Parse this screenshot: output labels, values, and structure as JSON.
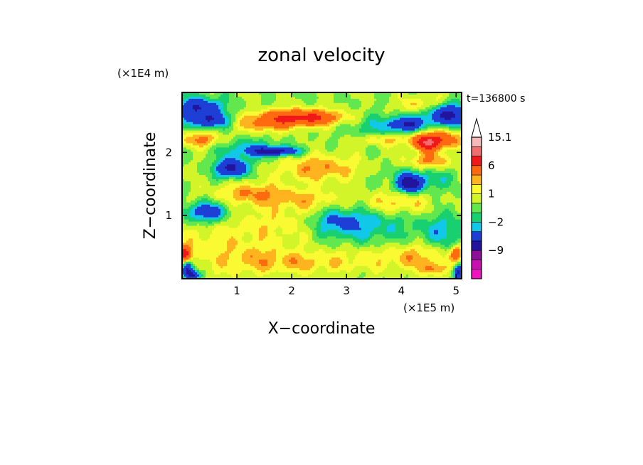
{
  "chart_data": {
    "type": "heatmap",
    "title": "zonal velocity",
    "xlabel": "X−coordinate",
    "ylabel": "Z−coordinate",
    "x_scale_label": "(×1E5 m)",
    "y_scale_label": "(×1E4 m)",
    "time_label": "t=136800 s",
    "xlim": [
      0,
      5.1
    ],
    "ylim": [
      0,
      2.95
    ],
    "x_ticks": [
      1,
      2,
      3,
      4,
      5
    ],
    "y_ticks": [
      1,
      2
    ],
    "colorbar": {
      "labels": [
        {
          "value": 15.1,
          "text": "15.1"
        },
        {
          "value": 6,
          "text": "6"
        },
        {
          "value": 1,
          "text": "1"
        },
        {
          "value": -2,
          "text": "−2"
        },
        {
          "value": -9,
          "text": "−9"
        }
      ],
      "levels": [
        -15,
        -12,
        -9,
        -6,
        -3,
        -2,
        -1,
        0,
        1,
        2,
        3,
        6,
        9,
        12,
        15.1
      ],
      "colors": [
        "#f014c0",
        "#c80fb0",
        "#8c0f9a",
        "#23149e",
        "#1d3fd6",
        "#12c8e8",
        "#18d070",
        "#62e84e",
        "#d2f52a",
        "#fafa32",
        "#ffb31f",
        "#ff6a10",
        "#f01818",
        "#f06e6e",
        "#f6b9b9"
      ],
      "extend_max": true
    },
    "features": [
      {
        "x": 2.2,
        "z": 2.55,
        "sx": 0.5,
        "sz": 0.09,
        "v": 7
      },
      {
        "x": 1.5,
        "z": 2.45,
        "sx": 0.35,
        "sz": 0.1,
        "v": 3
      },
      {
        "x": 0.35,
        "z": 2.2,
        "sx": 0.25,
        "sz": 0.08,
        "v": 3.5
      },
      {
        "x": 0.3,
        "z": 2.7,
        "sx": 0.3,
        "sz": 0.12,
        "v": -6
      },
      {
        "x": 0.5,
        "z": 2.5,
        "sx": 0.25,
        "sz": 0.08,
        "v": -5
      },
      {
        "x": 1.7,
        "z": 2.02,
        "sx": 0.3,
        "sz": 0.05,
        "v": -7
      },
      {
        "x": 1.2,
        "z": 2.05,
        "sx": 0.35,
        "sz": 0.12,
        "v": -2.5
      },
      {
        "x": 0.9,
        "z": 1.75,
        "sx": 0.2,
        "sz": 0.1,
        "v": -7
      },
      {
        "x": 3.5,
        "z": 2.4,
        "sx": 0.35,
        "sz": 0.15,
        "v": -2
      },
      {
        "x": 3.7,
        "z": 2.2,
        "sx": 0.4,
        "sz": 0.07,
        "v": 2.5
      },
      {
        "x": 4.45,
        "z": 2.15,
        "sx": 0.15,
        "sz": 0.09,
        "v": 7
      },
      {
        "x": 4.75,
        "z": 2.2,
        "sx": 0.25,
        "sz": 0.1,
        "v": 5
      },
      {
        "x": 4.85,
        "z": 2.6,
        "sx": 0.3,
        "sz": 0.12,
        "v": -7
      },
      {
        "x": 4.1,
        "z": 2.45,
        "sx": 0.2,
        "sz": 0.08,
        "v": -6
      },
      {
        "x": 4.4,
        "z": 2.75,
        "sx": 0.3,
        "sz": 0.1,
        "v": 2.5
      },
      {
        "x": 4.15,
        "z": 1.5,
        "sx": 0.15,
        "sz": 0.09,
        "v": -7
      },
      {
        "x": 4.35,
        "z": 1.6,
        "sx": 0.4,
        "sz": 0.15,
        "v": -2.5
      },
      {
        "x": 4.5,
        "z": 1.85,
        "sx": 0.3,
        "sz": 0.1,
        "v": 3.5
      },
      {
        "x": 3.9,
        "z": 1.2,
        "sx": 0.45,
        "sz": 0.13,
        "v": 2.5
      },
      {
        "x": 2.5,
        "z": 1.75,
        "sx": 0.5,
        "sz": 0.15,
        "v": 3
      },
      {
        "x": 1.3,
        "z": 1.35,
        "sx": 0.45,
        "sz": 0.12,
        "v": 3
      },
      {
        "x": 2.3,
        "z": 1.25,
        "sx": 0.4,
        "sz": 0.12,
        "v": 2
      },
      {
        "x": 0.45,
        "z": 1.05,
        "sx": 0.3,
        "sz": 0.12,
        "v": -5
      },
      {
        "x": 0.55,
        "z": 0.55,
        "sx": 0.55,
        "sz": 0.4,
        "v": 1.5
      },
      {
        "x": 1.7,
        "z": 0.85,
        "sx": 0.5,
        "sz": 0.25,
        "v": 1.5
      },
      {
        "x": 3.4,
        "z": 0.85,
        "sx": 0.5,
        "sz": 0.2,
        "v": -2.5
      },
      {
        "x": 2.8,
        "z": 0.9,
        "sx": 0.3,
        "sz": 0.15,
        "v": -2.5
      },
      {
        "x": 4.8,
        "z": 0.75,
        "sx": 0.35,
        "sz": 0.2,
        "v": -2.5
      },
      {
        "x": 1.4,
        "z": 0.3,
        "sx": 0.4,
        "sz": 0.15,
        "v": 2
      },
      {
        "x": 2.2,
        "z": 0.25,
        "sx": 0.4,
        "sz": 0.12,
        "v": 2
      },
      {
        "x": 3.2,
        "z": 0.3,
        "sx": 0.5,
        "sz": 0.15,
        "v": 1.5
      },
      {
        "x": 4.3,
        "z": 0.35,
        "sx": 0.4,
        "sz": 0.15,
        "v": 2.5
      },
      {
        "x": 0.05,
        "z": 0.4,
        "sx": 0.08,
        "sz": 0.08,
        "v": 7
      },
      {
        "x": 0.1,
        "z": 0.15,
        "sx": 0.08,
        "sz": 0.08,
        "v": -7
      },
      {
        "x": 0.2,
        "z": 0.05,
        "sx": 0.1,
        "sz": 0.05,
        "v": -6
      },
      {
        "x": 5.0,
        "z": 0.4,
        "sx": 0.07,
        "sz": 0.08,
        "v": 5
      },
      {
        "x": 5.05,
        "z": 0.1,
        "sx": 0.06,
        "sz": 0.08,
        "v": -7
      },
      {
        "x": 4.6,
        "z": 0.15,
        "sx": 0.15,
        "sz": 0.07,
        "v": 3
      }
    ]
  }
}
